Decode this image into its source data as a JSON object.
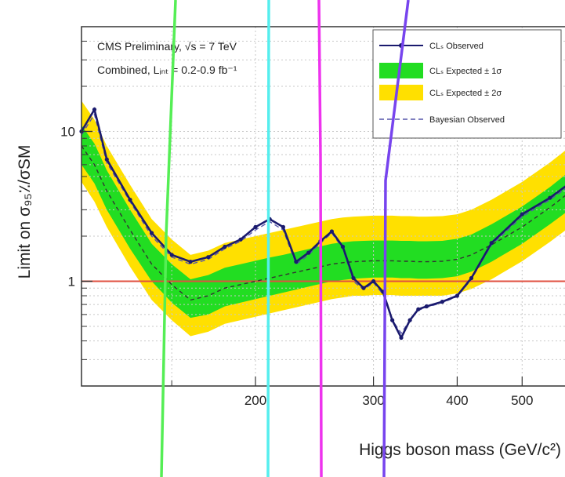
{
  "chart_data": {
    "type": "line",
    "title": "",
    "annotations": {
      "line1": "CMS Preliminary, √s = 7 TeV",
      "line2": "Combined, Lᵢₙₜ = 0.2-0.9 fb⁻¹"
    },
    "xlabel": "Higgs boson mass (GeV/c²)",
    "ylabel": "Limit on σ₉₅٪/σSM",
    "x_scale": "log",
    "y_scale": "log",
    "xlim": [
      110,
      600
    ],
    "ylim": [
      0.2,
      50
    ],
    "x_ticks": [
      {
        "value": 200,
        "label": "200"
      },
      {
        "value": 300,
        "label": "300"
      },
      {
        "value": 400,
        "label": "400"
      },
      {
        "value": 500,
        "label": "500"
      }
    ],
    "y_ticks": [
      {
        "value": 1,
        "label": "1"
      },
      {
        "value": 10,
        "label": "10"
      }
    ],
    "grid": true,
    "legend_position": "top-right",
    "legend": [
      {
        "label": "CLₛ Observed",
        "kind": "line-marker",
        "color": "#1a1a6e"
      },
      {
        "label": "CLₛ Expected ± 1σ",
        "kind": "fill",
        "color": "#22dd22"
      },
      {
        "label": "CLₛ Expected ± 2σ",
        "kind": "fill",
        "color": "#ffe000"
      },
      {
        "label": "Bayesian Observed",
        "kind": "dashed-line",
        "color": "#5555aa"
      }
    ],
    "reference_line": {
      "y": 1,
      "color": "#e05040"
    },
    "x": [
      110,
      115,
      120,
      130,
      140,
      150,
      160,
      170,
      180,
      190,
      200,
      210,
      220,
      230,
      240,
      250,
      260,
      270,
      280,
      290,
      300,
      310,
      320,
      330,
      340,
      350,
      360,
      380,
      400,
      420,
      450,
      500,
      550,
      600
    ],
    "series": [
      {
        "name": "CLₛ Observed",
        "role": "observed",
        "values": [
          10,
          14,
          6.5,
          3.5,
          2.1,
          1.5,
          1.35,
          1.45,
          1.7,
          1.9,
          2.3,
          2.6,
          2.3,
          1.35,
          1.55,
          1.85,
          2.15,
          1.7,
          1.05,
          0.9,
          1.0,
          0.85,
          0.55,
          0.42,
          0.55,
          0.65,
          0.68,
          0.73,
          0.8,
          1.05,
          1.8,
          2.8,
          3.6,
          4.8
        ]
      },
      {
        "name": "Bayesian Observed",
        "role": "bayesian",
        "values": [
          9.5,
          13,
          6.2,
          3.4,
          2.0,
          1.45,
          1.3,
          1.4,
          1.65,
          1.85,
          2.2,
          2.5,
          2.2,
          1.3,
          1.5,
          1.8,
          2.1,
          1.65,
          1.0,
          0.88,
          0.98,
          0.82,
          0.55,
          0.45,
          0.55,
          0.64,
          0.67,
          0.72,
          0.79,
          1.03,
          1.75,
          2.7,
          3.5,
          4.6
        ]
      },
      {
        "name": "CLₛ Expected",
        "role": "expected",
        "values": [
          8,
          6,
          4.0,
          2.2,
          1.3,
          0.95,
          0.75,
          0.8,
          0.9,
          0.95,
          1.0,
          1.05,
          1.1,
          1.15,
          1.2,
          1.25,
          1.3,
          1.33,
          1.35,
          1.36,
          1.37,
          1.37,
          1.37,
          1.36,
          1.36,
          1.35,
          1.35,
          1.36,
          1.4,
          1.5,
          1.75,
          2.3,
          3.1,
          4.2
        ]
      }
    ],
    "band_1sigma": {
      "low": [
        6.0,
        4.5,
        3.0,
        1.65,
        1.0,
        0.72,
        0.57,
        0.6,
        0.68,
        0.72,
        0.76,
        0.8,
        0.84,
        0.88,
        0.92,
        0.96,
        1.0,
        1.02,
        1.04,
        1.05,
        1.06,
        1.06,
        1.06,
        1.05,
        1.05,
        1.04,
        1.04,
        1.05,
        1.08,
        1.16,
        1.35,
        1.78,
        2.4,
        3.2
      ],
      "high": [
        11,
        8.3,
        5.5,
        3.0,
        1.78,
        1.3,
        1.03,
        1.1,
        1.23,
        1.3,
        1.37,
        1.44,
        1.5,
        1.57,
        1.64,
        1.71,
        1.78,
        1.82,
        1.85,
        1.86,
        1.87,
        1.87,
        1.87,
        1.86,
        1.86,
        1.85,
        1.85,
        1.86,
        1.92,
        2.05,
        2.4,
        3.15,
        4.25,
        5.8
      ]
    },
    "band_2sigma": {
      "low": [
        4.6,
        3.4,
        2.3,
        1.25,
        0.75,
        0.55,
        0.43,
        0.46,
        0.52,
        0.55,
        0.58,
        0.61,
        0.64,
        0.67,
        0.7,
        0.73,
        0.76,
        0.78,
        0.8,
        0.8,
        0.81,
        0.81,
        0.81,
        0.8,
        0.8,
        0.8,
        0.8,
        0.8,
        0.83,
        0.89,
        1.03,
        1.36,
        1.83,
        2.45
      ],
      "high": [
        16,
        12,
        8.0,
        4.4,
        2.6,
        1.9,
        1.5,
        1.6,
        1.8,
        1.9,
        2.0,
        2.1,
        2.2,
        2.3,
        2.4,
        2.5,
        2.6,
        2.66,
        2.7,
        2.72,
        2.74,
        2.74,
        2.74,
        2.72,
        2.72,
        2.7,
        2.7,
        2.72,
        2.8,
        3.0,
        3.5,
        4.6,
        6.2,
        8.4
      ]
    }
  },
  "overlay_lines": [
    {
      "name": "green-line",
      "color": "#55ee55"
    },
    {
      "name": "cyan-line",
      "color": "#55eeee"
    },
    {
      "name": "magenta-line",
      "color": "#ee33ee"
    },
    {
      "name": "purple-line",
      "color": "#7744ee"
    }
  ]
}
